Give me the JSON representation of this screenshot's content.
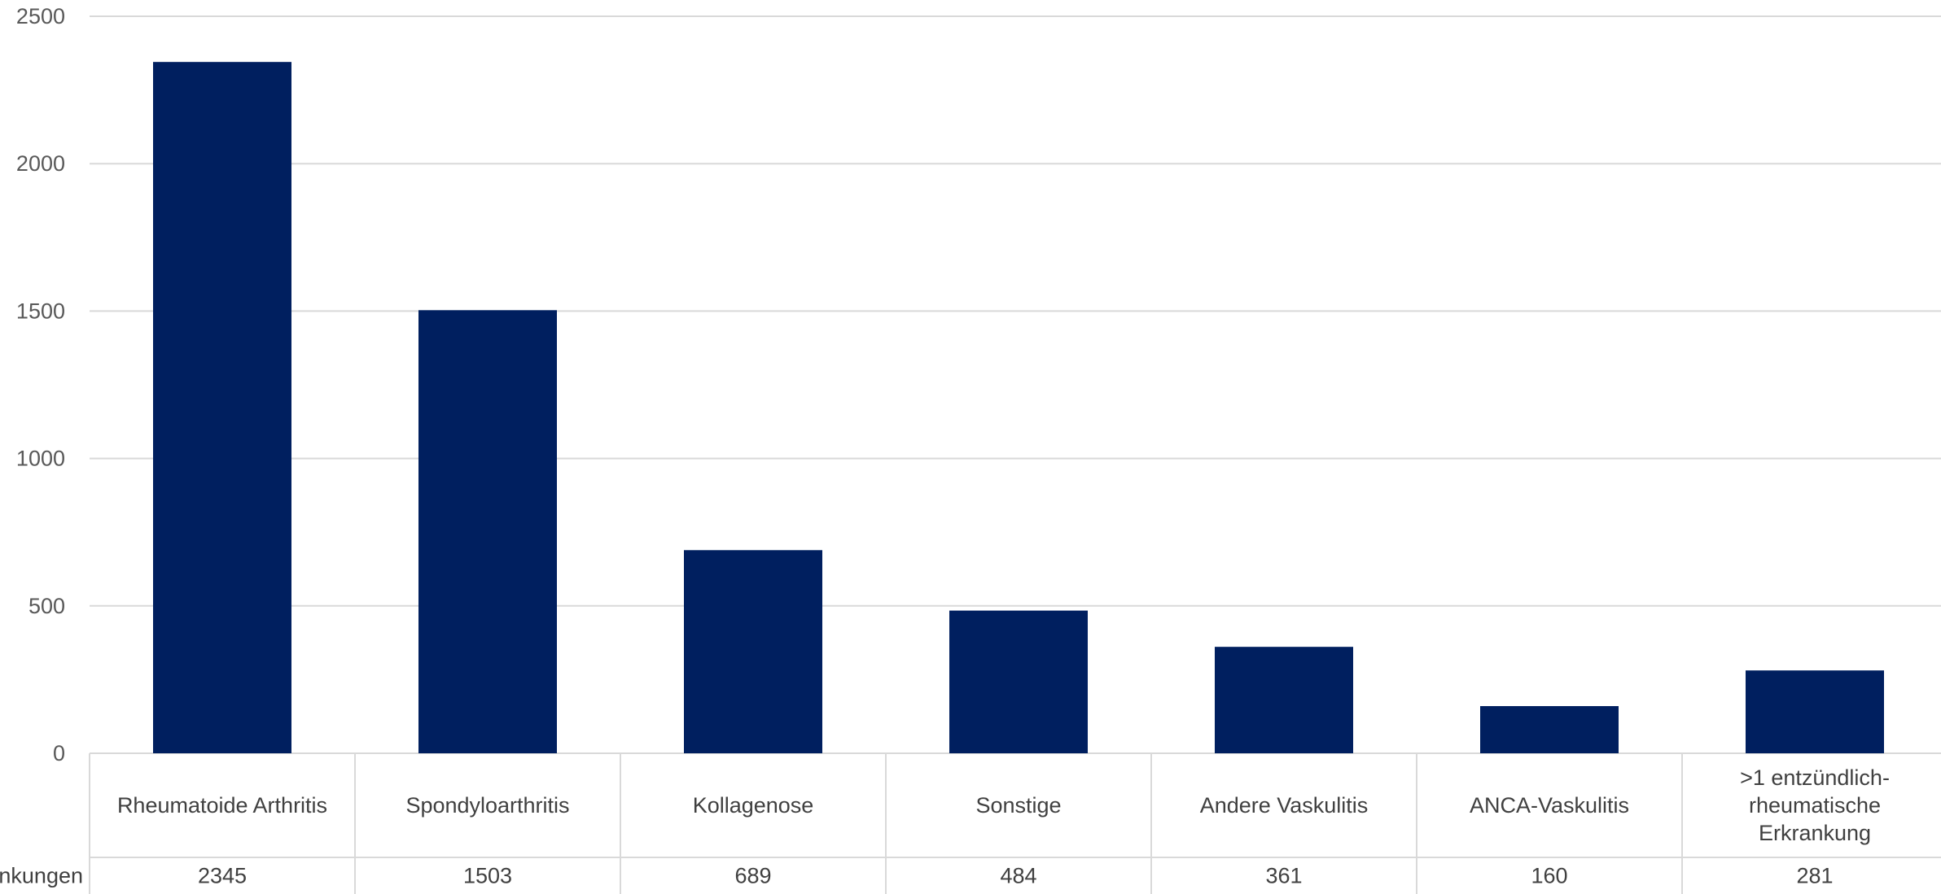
{
  "chart_data": {
    "type": "bar",
    "title": "",
    "xlabel": "",
    "ylabel": "",
    "ylim": [
      0,
      2500
    ],
    "yticks": [
      0,
      500,
      1000,
      1500,
      2000,
      2500
    ],
    "grid": true,
    "legend": "none",
    "data_table": true,
    "categories": [
      "Rheumatoide Arthritis",
      "Spondyloarthritis",
      "Kollagenose",
      "Sonstige",
      "Andere Vaskulitis",
      "ANCA-Vaskulitis",
      ">1 entzündlich-rheumatische Erkrankung"
    ],
    "series": [
      {
        "name": "...nkungen",
        "values": [
          2345,
          1503,
          689,
          484,
          361,
          160,
          281
        ]
      }
    ]
  },
  "colors": {
    "bar": "#001f5f",
    "grid": "#d9d9d9",
    "axis_text": "#595959",
    "table_text": "#404040"
  }
}
